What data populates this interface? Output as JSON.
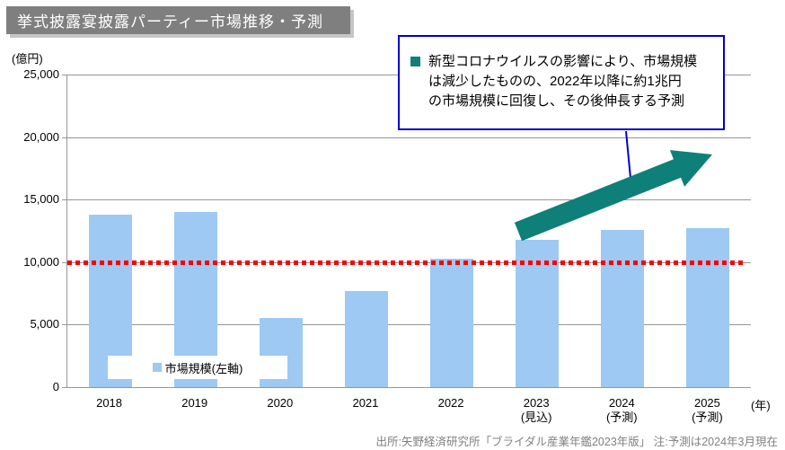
{
  "title": "挙式披露宴披露パーティー市場推移・予測",
  "y_axis_unit": "(億円)",
  "x_axis_unit": "(年)",
  "legend": {
    "label": "市場規模(左軸)"
  },
  "annotation": {
    "lines": [
      "新型コロナウイルスの影響により、市場規模",
      "は減少したものの、2022年以降に約1兆円",
      "の市場規模に回復し、その後伸長する予測"
    ]
  },
  "source_note": "出所:矢野経済研究所「ブライダル産業年鑑2023年版」 注:予測は2024年3月現在",
  "colors": {
    "bar": "#9dc9f2",
    "grid": "#969696",
    "reference_line": "#ff0000",
    "callout_blue": "#0000cc",
    "arrow_teal": "#0e7f79",
    "title_bg": "#7f7f7f",
    "source_text": "#808080"
  },
  "chart_data": {
    "type": "bar",
    "title": "挙式披露宴披露パーティー市場推移・予測",
    "ylabel": "(億円)",
    "xlabel": "(年)",
    "categories": [
      "2018",
      "2019",
      "2020",
      "2021",
      "2022",
      "2023",
      "2024",
      "2025"
    ],
    "category_notes": [
      "",
      "",
      "",
      "",
      "",
      "(見込)",
      "(予測)",
      "(予測)"
    ],
    "series": [
      {
        "name": "市場規模(左軸)",
        "values": [
          13800,
          14000,
          5500,
          7700,
          10300,
          11800,
          12600,
          12700
        ]
      }
    ],
    "ylim": [
      0,
      25000
    ],
    "yticks": [
      {
        "value": 0,
        "label": "0"
      },
      {
        "value": 5000,
        "label": "5,000"
      },
      {
        "value": 10000,
        "label": "10,000"
      },
      {
        "value": 15000,
        "label": "15,000"
      },
      {
        "value": 20000,
        "label": "20,000"
      },
      {
        "value": 25000,
        "label": "25,000"
      }
    ],
    "reference_line": {
      "value": 10000,
      "style": "red-dotted"
    },
    "grid": true,
    "legend_position": "inside-bottom-left"
  }
}
